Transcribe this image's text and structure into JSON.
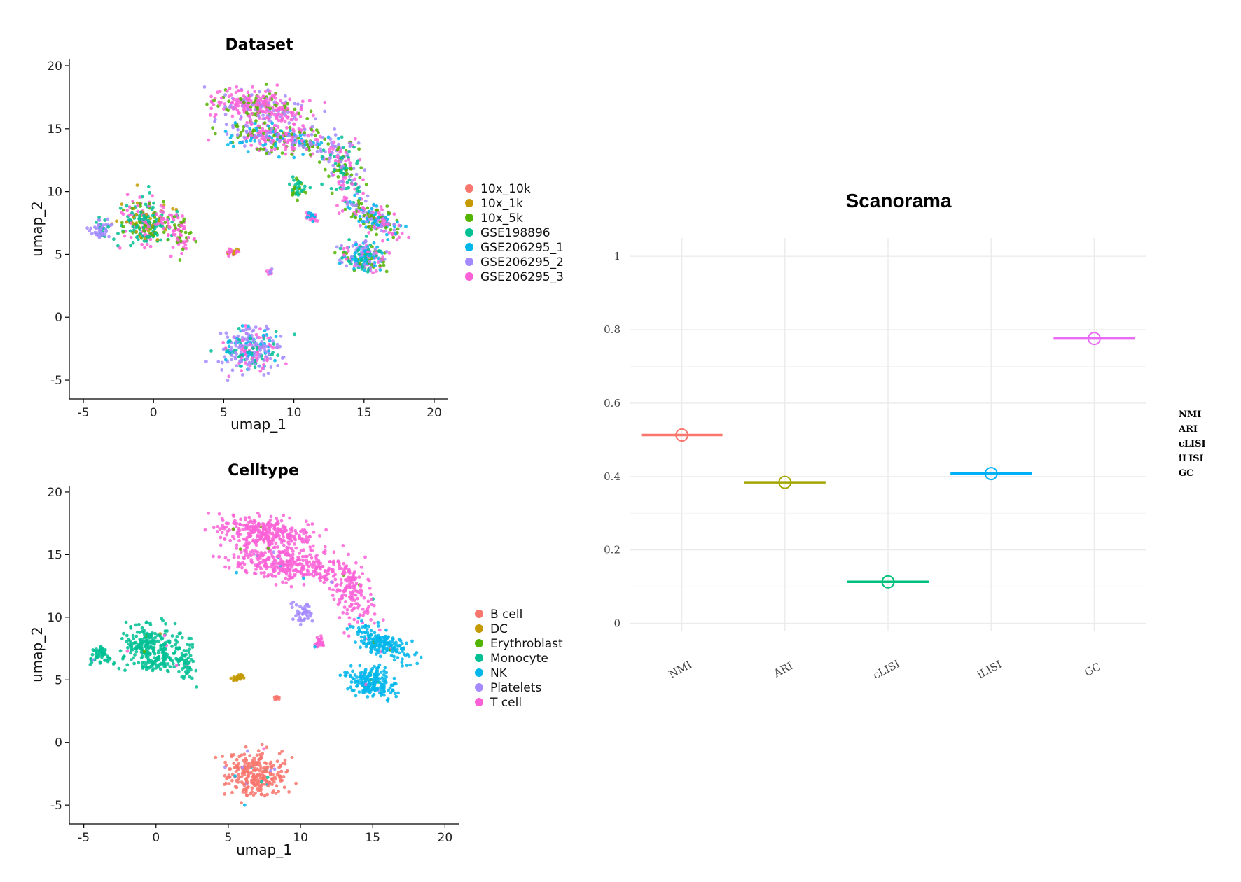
{
  "palette": [
    "#F8766D",
    "#C49A00",
    "#53B400",
    "#00C094",
    "#00B6EB",
    "#A58AFF",
    "#FB61D7"
  ],
  "umap_plots": [
    {
      "title": "Dataset",
      "xlabel": "umap_1",
      "ylabel": "umap_2",
      "xlim": [
        -6,
        21
      ],
      "ylim": [
        -6.5,
        20.5
      ],
      "xticks": [
        "-5",
        "0",
        "5",
        "10",
        "15",
        "20"
      ],
      "yticks": [
        "-5",
        "0",
        "5",
        "10",
        "15",
        "20"
      ],
      "legend": [
        "10x_10k",
        "10x_1k",
        "10x_5k",
        "GSE198896",
        "GSE206295_1",
        "GSE206295_2",
        "GSE206295_3"
      ]
    },
    {
      "title": "Celltype",
      "xlabel": "umap_1",
      "ylabel": "umap_2",
      "xlim": [
        -6,
        21
      ],
      "ylim": [
        -6.5,
        20.5
      ],
      "xticks": [
        "-5",
        "0",
        "5",
        "10",
        "15",
        "20"
      ],
      "yticks": [
        "-5",
        "0",
        "5",
        "10",
        "15",
        "20"
      ],
      "legend": [
        "B cell",
        "DC",
        "Erythroblast",
        "Monocyte",
        "NK",
        "Platelets",
        "T cell"
      ]
    }
  ],
  "chart_data": {
    "type": "scatter",
    "title": "Scanorama",
    "categories": [
      "NMI",
      "ARI",
      "cLISI",
      "iLISI",
      "GC"
    ],
    "values": [
      0.513,
      0.384,
      0.113,
      0.408,
      0.776
    ],
    "colors": [
      "#F8766D",
      "#A3A500",
      "#00BF7D",
      "#00B0F6",
      "#E76BF3"
    ],
    "ylim": [
      -0.02,
      1.05
    ],
    "yticks": [
      "0",
      "0.2",
      "0.4",
      "0.6",
      "0.8",
      "1"
    ],
    "legend": [
      "NMI",
      "ARI",
      "cLISI",
      "iLISI",
      "GC"
    ],
    "legend_position": "right",
    "grid": true
  }
}
